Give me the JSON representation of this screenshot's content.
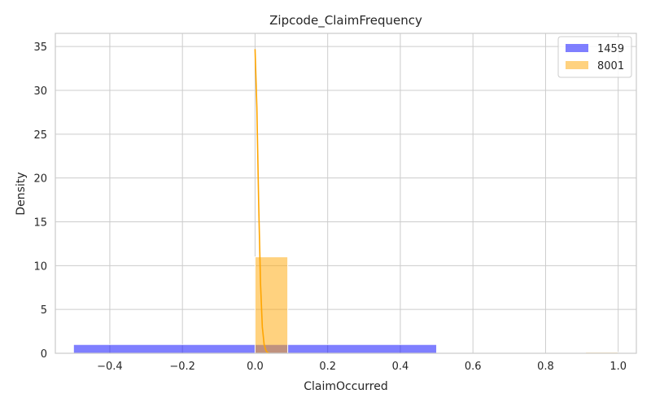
{
  "chart_data": {
    "type": "histogram",
    "title": "Zipcode_ClaimFrequency",
    "xlabel": "ClaimOccurred",
    "ylabel": "Density",
    "xlim": [
      -0.55,
      1.05
    ],
    "ylim": [
      0,
      36.5
    ],
    "xticks": [
      -0.4,
      -0.2,
      0.0,
      0.2,
      0.4,
      0.6,
      0.8,
      1.0
    ],
    "xtick_labels": [
      "−0.4",
      "−0.2",
      "0.0",
      "0.2",
      "0.4",
      "0.6",
      "0.8",
      "1.0"
    ],
    "yticks": [
      0,
      5,
      10,
      15,
      20,
      25,
      30,
      35
    ],
    "ytick_labels": [
      "0",
      "5",
      "10",
      "15",
      "20",
      "25",
      "30",
      "35"
    ],
    "grid": true,
    "legend_position": "top-right",
    "series": [
      {
        "name": "1459",
        "color": "#0000ff",
        "opacity": 0.5,
        "bins": [
          {
            "x0": -0.5,
            "x1": 0.5,
            "density": 1.0
          }
        ]
      },
      {
        "name": "8001",
        "color": "#ffa500",
        "opacity": 0.5,
        "bins": [
          {
            "x0": 0.0,
            "x1": 0.09,
            "density": 11.0
          },
          {
            "x0": 0.91,
            "x1": 1.0,
            "density": 0.12
          }
        ],
        "kde": {
          "x": [
            0.0,
            0.005,
            0.01,
            0.015,
            0.02,
            0.025,
            0.03,
            0.035,
            0.04
          ],
          "y": [
            34.7,
            28.0,
            17.0,
            8.0,
            3.0,
            1.0,
            0.3,
            0.05,
            0.0
          ]
        }
      }
    ]
  }
}
